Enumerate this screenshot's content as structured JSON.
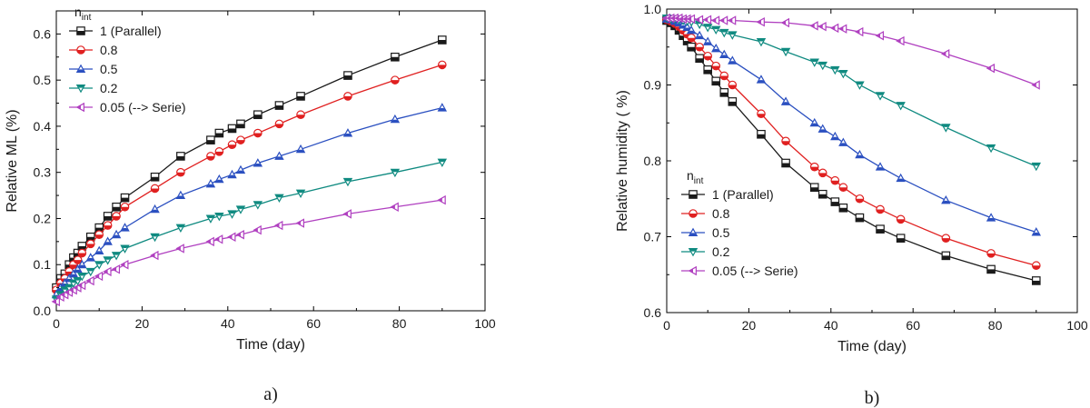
{
  "chart_data": [
    {
      "panel_label": "a)",
      "type": "line",
      "xlabel": "Time (day)",
      "ylabel": "Relative ML (%)",
      "xlim": [
        0,
        100
      ],
      "ylim": [
        0.0,
        0.65
      ],
      "xticks": [
        "0",
        "20",
        "40",
        "60",
        "80",
        "100"
      ],
      "yticks": [
        "0.0",
        "0.1",
        "0.2",
        "0.3",
        "0.4",
        "0.5",
        "0.6"
      ],
      "legend_placement": "top-left",
      "legend_title": "n",
      "legend_title_sub": "int",
      "x": [
        0,
        1,
        2,
        3,
        4,
        5,
        6,
        8,
        10,
        12,
        14,
        16,
        23,
        29,
        36,
        38,
        41,
        43,
        47,
        52,
        57,
        68,
        79,
        90
      ],
      "series": [
        {
          "name": "1  (Parallel)",
          "color": "#1a1a1a",
          "marker": "square",
          "values": [
            0.05,
            0.07,
            0.08,
            0.1,
            0.115,
            0.125,
            0.14,
            0.16,
            0.18,
            0.205,
            0.225,
            0.245,
            0.29,
            0.335,
            0.37,
            0.385,
            0.395,
            0.405,
            0.425,
            0.445,
            0.465,
            0.51,
            0.55,
            0.587
          ]
        },
        {
          "name": "0.8",
          "color": "#e02020",
          "marker": "circle",
          "values": [
            0.045,
            0.06,
            0.07,
            0.085,
            0.1,
            0.11,
            0.125,
            0.145,
            0.165,
            0.185,
            0.205,
            0.225,
            0.265,
            0.3,
            0.335,
            0.345,
            0.36,
            0.37,
            0.385,
            0.405,
            0.425,
            0.465,
            0.5,
            0.533
          ]
        },
        {
          "name": "0.5",
          "color": "#2a4fc0",
          "marker": "triangle-up",
          "values": [
            0.035,
            0.05,
            0.06,
            0.07,
            0.08,
            0.09,
            0.1,
            0.115,
            0.13,
            0.15,
            0.165,
            0.18,
            0.22,
            0.25,
            0.275,
            0.285,
            0.295,
            0.305,
            0.32,
            0.335,
            0.35,
            0.385,
            0.415,
            0.44
          ]
        },
        {
          "name": "0.2",
          "color": "#0f8a80",
          "marker": "triangle-down",
          "values": [
            0.025,
            0.035,
            0.045,
            0.05,
            0.06,
            0.065,
            0.075,
            0.085,
            0.1,
            0.11,
            0.12,
            0.135,
            0.16,
            0.18,
            0.2,
            0.205,
            0.21,
            0.22,
            0.23,
            0.245,
            0.255,
            0.28,
            0.3,
            0.322
          ]
        },
        {
          "name": "0.05 (--> Serie)",
          "color": "#b040c0",
          "marker": "triangle-left",
          "values": [
            0.02,
            0.03,
            0.035,
            0.04,
            0.045,
            0.05,
            0.055,
            0.065,
            0.075,
            0.085,
            0.09,
            0.1,
            0.12,
            0.135,
            0.15,
            0.155,
            0.16,
            0.165,
            0.175,
            0.185,
            0.19,
            0.21,
            0.225,
            0.24
          ]
        }
      ]
    },
    {
      "panel_label": "b)",
      "type": "line",
      "xlabel": "Time (day)",
      "ylabel": "Relative humidity  ( %)",
      "xlim": [
        0,
        100
      ],
      "ylim": [
        0.6,
        1.0
      ],
      "xticks": [
        "0",
        "20",
        "40",
        "60",
        "80",
        "100"
      ],
      "yticks": [
        "0.6",
        "0.7",
        "0.8",
        "0.9",
        "1.0"
      ],
      "legend_placement": "center-left",
      "legend_title": "n",
      "legend_title_sub": "int",
      "x": [
        0,
        1,
        2,
        3,
        4,
        5,
        6,
        8,
        10,
        12,
        14,
        16,
        23,
        29,
        36,
        38,
        41,
        43,
        47,
        52,
        57,
        68,
        79,
        90
      ],
      "series": [
        {
          "name": "1  (Parallel)",
          "color": "#1a1a1a",
          "marker": "square",
          "values": [
            0.985,
            0.982,
            0.978,
            0.972,
            0.965,
            0.958,
            0.95,
            0.935,
            0.92,
            0.905,
            0.89,
            0.878,
            0.835,
            0.797,
            0.765,
            0.756,
            0.746,
            0.738,
            0.725,
            0.71,
            0.698,
            0.675,
            0.657,
            0.642
          ]
        },
        {
          "name": "0.8",
          "color": "#e02020",
          "marker": "circle",
          "values": [
            0.986,
            0.984,
            0.981,
            0.977,
            0.972,
            0.967,
            0.962,
            0.95,
            0.938,
            0.925,
            0.912,
            0.9,
            0.862,
            0.826,
            0.792,
            0.784,
            0.774,
            0.765,
            0.75,
            0.736,
            0.723,
            0.698,
            0.678,
            0.662
          ]
        },
        {
          "name": "0.5",
          "color": "#2a4fc0",
          "marker": "triangle-up",
          "values": [
            0.987,
            0.986,
            0.984,
            0.982,
            0.979,
            0.976,
            0.972,
            0.965,
            0.957,
            0.948,
            0.94,
            0.932,
            0.907,
            0.878,
            0.85,
            0.842,
            0.832,
            0.824,
            0.808,
            0.792,
            0.777,
            0.748,
            0.725,
            0.706
          ]
        },
        {
          "name": "0.2",
          "color": "#0f8a80",
          "marker": "triangle-down",
          "values": [
            0.988,
            0.987,
            0.987,
            0.986,
            0.985,
            0.984,
            0.983,
            0.98,
            0.976,
            0.973,
            0.969,
            0.966,
            0.957,
            0.944,
            0.93,
            0.926,
            0.92,
            0.915,
            0.9,
            0.886,
            0.873,
            0.844,
            0.817,
            0.793
          ]
        },
        {
          "name": "0.05 (--> Serie)",
          "color": "#b040c0",
          "marker": "triangle-left",
          "values": [
            0.988,
            0.988,
            0.988,
            0.988,
            0.987,
            0.987,
            0.987,
            0.986,
            0.986,
            0.985,
            0.985,
            0.985,
            0.983,
            0.982,
            0.978,
            0.977,
            0.975,
            0.974,
            0.97,
            0.965,
            0.958,
            0.941,
            0.922,
            0.9
          ]
        }
      ]
    }
  ]
}
